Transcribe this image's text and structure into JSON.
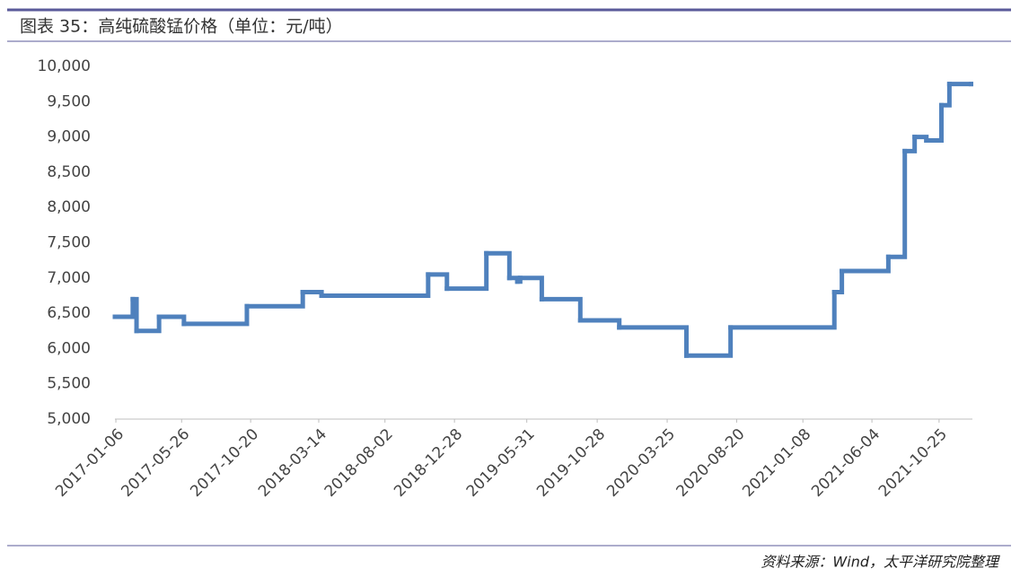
{
  "chart_data": {
    "type": "line",
    "step": "post",
    "title": "图表 35：高纯硫酸锰价格（单位：元/吨）",
    "source": "资料来源：Wind，太平洋研究院整理",
    "x": [
      "2017-01-04",
      "2017-02-11",
      "2017-02-19",
      "2017-04-08",
      "2017-05-31",
      "2017-10-12",
      "2018-02-08",
      "2018-03-20",
      "2018-11-02",
      "2018-12-12",
      "2019-03-06",
      "2019-04-24",
      "2019-05-11",
      "2019-05-17",
      "2019-07-02",
      "2019-09-22",
      "2019-12-14",
      "2020-05-05",
      "2020-08-07",
      "2021-03-16",
      "2021-04-01",
      "2021-07-09",
      "2021-08-13",
      "2021-09-03",
      "2021-09-28",
      "2021-10-30",
      "2021-11-16",
      "2022-01-01"
    ],
    "series": [
      {
        "name": "高纯硫酸锰价格",
        "color": "#4f81bd",
        "values": [
          6450,
          6700,
          6250,
          6450,
          6350,
          6600,
          6800,
          6750,
          7050,
          6850,
          7350,
          7000,
          6950,
          7000,
          6700,
          6400,
          6300,
          5900,
          6300,
          6800,
          7100,
          7300,
          8800,
          9000,
          8950,
          9450,
          9750,
          9750
        ]
      }
    ],
    "xlim": [
      "2017-01-04",
      "2022-01-04"
    ],
    "xticks": [
      "2017-01-06",
      "2017-05-26",
      "2017-10-20",
      "2018-03-14",
      "2018-08-02",
      "2018-12-28",
      "2019-05-31",
      "2019-10-28",
      "2020-03-25",
      "2020-08-20",
      "2021-01-08",
      "2021-06-04",
      "2021-10-25"
    ],
    "ylim": [
      5000,
      10000
    ],
    "yticks": [
      {
        "value": 5000,
        "label": "5,000"
      },
      {
        "value": 5500,
        "label": "5,500"
      },
      {
        "value": 6000,
        "label": "6,000"
      },
      {
        "value": 6500,
        "label": "6,500"
      },
      {
        "value": 7000,
        "label": "7,000"
      },
      {
        "value": 7500,
        "label": "7,500"
      },
      {
        "value": 8000,
        "label": "8,000"
      },
      {
        "value": 8500,
        "label": "8,500"
      },
      {
        "value": 9000,
        "label": "9,000"
      },
      {
        "value": 9500,
        "label": "9,500"
      },
      {
        "value": 10000,
        "label": "10,000"
      }
    ],
    "grid": false
  }
}
